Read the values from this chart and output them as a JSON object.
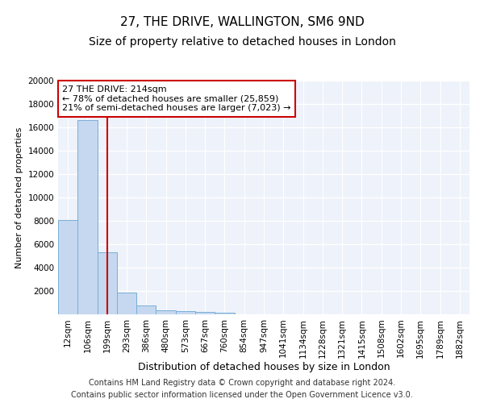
{
  "title": "27, THE DRIVE, WALLINGTON, SM6 9ND",
  "subtitle": "Size of property relative to detached houses in London",
  "xlabel": "Distribution of detached houses by size in London",
  "ylabel": "Number of detached properties",
  "categories": [
    "12sqm",
    "106sqm",
    "199sqm",
    "293sqm",
    "386sqm",
    "480sqm",
    "573sqm",
    "667sqm",
    "760sqm",
    "854sqm",
    "947sqm",
    "1041sqm",
    "1134sqm",
    "1228sqm",
    "1321sqm",
    "1415sqm",
    "1508sqm",
    "1602sqm",
    "1695sqm",
    "1789sqm",
    "1882sqm"
  ],
  "values": [
    8100,
    16600,
    5300,
    1850,
    750,
    330,
    270,
    210,
    160,
    0,
    0,
    0,
    0,
    0,
    0,
    0,
    0,
    0,
    0,
    0,
    0
  ],
  "bar_color": "#c5d8f0",
  "bar_edge_color": "#7aaed6",
  "vline_x_index": 2.0,
  "vline_color": "#cc0000",
  "annotation_text": "27 THE DRIVE: 214sqm\n← 78% of detached houses are smaller (25,859)\n21% of semi-detached houses are larger (7,023) →",
  "annotation_box_color": "white",
  "annotation_box_edge_color": "#cc0000",
  "ylim": [
    0,
    20000
  ],
  "yticks": [
    0,
    2000,
    4000,
    6000,
    8000,
    10000,
    12000,
    14000,
    16000,
    18000,
    20000
  ],
  "footer_line1": "Contains HM Land Registry data © Crown copyright and database right 2024.",
  "footer_line2": "Contains public sector information licensed under the Open Government Licence v3.0.",
  "background_color": "#eef2fa",
  "grid_color": "white",
  "title_fontsize": 11,
  "subtitle_fontsize": 10,
  "xlabel_fontsize": 9,
  "ylabel_fontsize": 8,
  "tick_fontsize": 7.5,
  "annotation_fontsize": 8,
  "footer_fontsize": 7
}
